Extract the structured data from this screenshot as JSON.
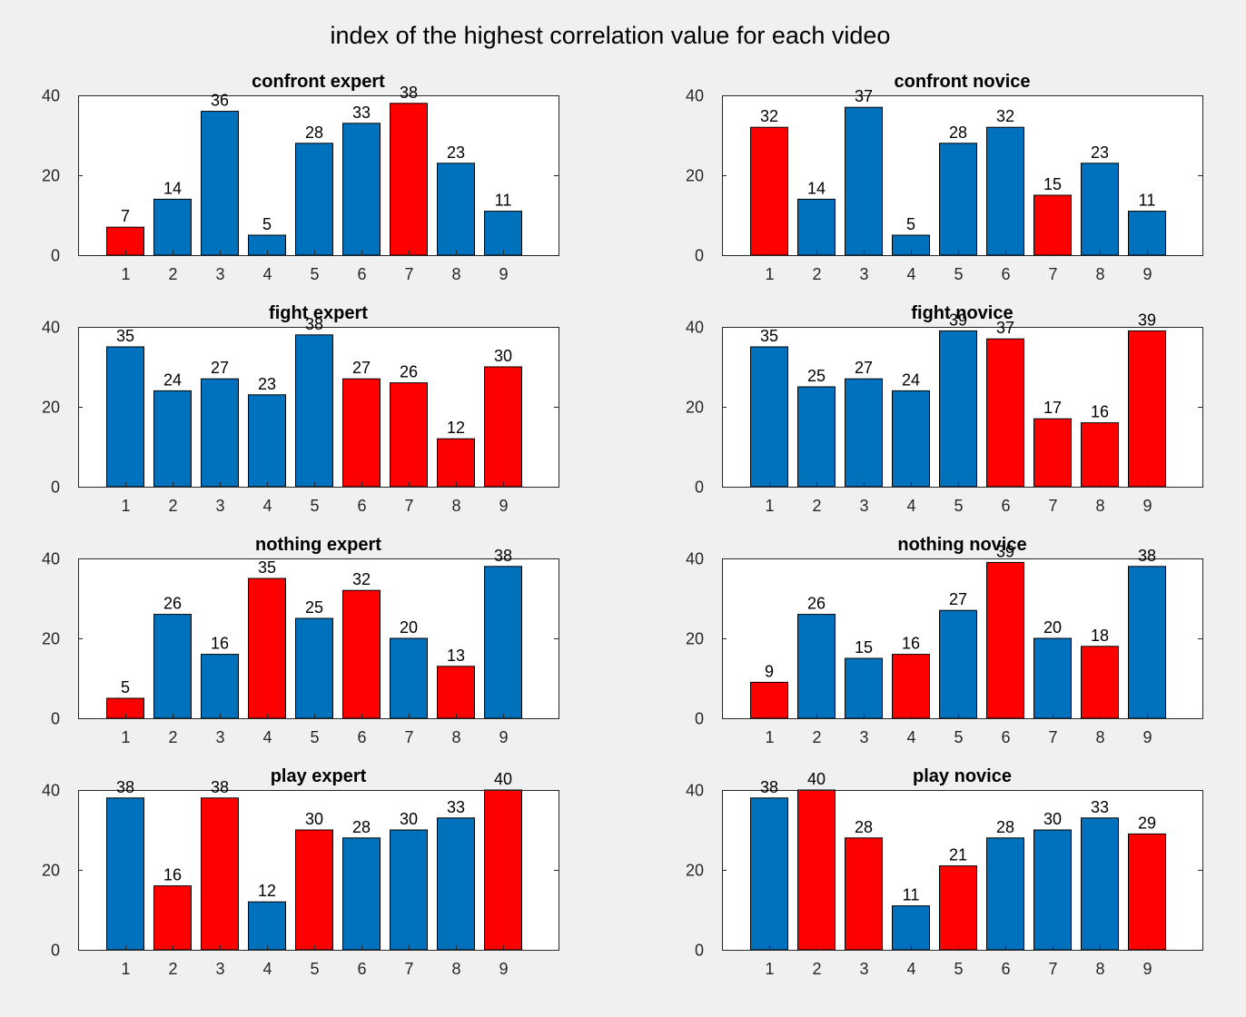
{
  "title": "index of the highest correlation value for each video",
  "colors": {
    "blue": "#0072bd",
    "red": "#ff0000"
  },
  "chart_data": [
    {
      "type": "bar",
      "title": "confront expert",
      "categories": [
        "1",
        "2",
        "3",
        "4",
        "5",
        "6",
        "7",
        "8",
        "9"
      ],
      "values": [
        7,
        14,
        36,
        5,
        28,
        33,
        38,
        23,
        11
      ],
      "colors": [
        "red",
        "blue",
        "blue",
        "blue",
        "blue",
        "blue",
        "red",
        "blue",
        "blue"
      ],
      "ylim": [
        0,
        40
      ],
      "yticks": [
        0,
        20,
        40
      ],
      "grid": false
    },
    {
      "type": "bar",
      "title": "confront novice",
      "categories": [
        "1",
        "2",
        "3",
        "4",
        "5",
        "6",
        "7",
        "8",
        "9"
      ],
      "values": [
        32,
        14,
        37,
        5,
        28,
        32,
        15,
        23,
        11
      ],
      "colors": [
        "red",
        "blue",
        "blue",
        "blue",
        "blue",
        "blue",
        "red",
        "blue",
        "blue"
      ],
      "ylim": [
        0,
        40
      ],
      "yticks": [
        0,
        20,
        40
      ],
      "grid": false
    },
    {
      "type": "bar",
      "title": "fight expert",
      "categories": [
        "1",
        "2",
        "3",
        "4",
        "5",
        "6",
        "7",
        "8",
        "9"
      ],
      "values": [
        35,
        24,
        27,
        23,
        38,
        27,
        26,
        12,
        30
      ],
      "colors": [
        "blue",
        "blue",
        "blue",
        "blue",
        "blue",
        "red",
        "red",
        "red",
        "red"
      ],
      "ylim": [
        0,
        40
      ],
      "yticks": [
        0,
        20,
        40
      ],
      "grid": false
    },
    {
      "type": "bar",
      "title": "fight novice",
      "categories": [
        "1",
        "2",
        "3",
        "4",
        "5",
        "6",
        "7",
        "8",
        "9"
      ],
      "values": [
        35,
        25,
        27,
        24,
        39,
        37,
        17,
        16,
        39
      ],
      "colors": [
        "blue",
        "blue",
        "blue",
        "blue",
        "blue",
        "red",
        "red",
        "red",
        "red"
      ],
      "ylim": [
        0,
        40
      ],
      "yticks": [
        0,
        20,
        40
      ],
      "grid": false
    },
    {
      "type": "bar",
      "title": "nothing expert",
      "categories": [
        "1",
        "2",
        "3",
        "4",
        "5",
        "6",
        "7",
        "8",
        "9"
      ],
      "values": [
        5,
        26,
        16,
        35,
        25,
        32,
        20,
        13,
        38
      ],
      "colors": [
        "red",
        "blue",
        "blue",
        "red",
        "blue",
        "red",
        "blue",
        "red",
        "blue"
      ],
      "ylim": [
        0,
        40
      ],
      "yticks": [
        0,
        20,
        40
      ],
      "grid": false
    },
    {
      "type": "bar",
      "title": "nothing novice",
      "categories": [
        "1",
        "2",
        "3",
        "4",
        "5",
        "6",
        "7",
        "8",
        "9"
      ],
      "values": [
        9,
        26,
        15,
        16,
        27,
        39,
        20,
        18,
        38
      ],
      "colors": [
        "red",
        "blue",
        "blue",
        "red",
        "blue",
        "red",
        "blue",
        "red",
        "blue"
      ],
      "ylim": [
        0,
        40
      ],
      "yticks": [
        0,
        20,
        40
      ],
      "grid": false
    },
    {
      "type": "bar",
      "title": "play expert",
      "categories": [
        "1",
        "2",
        "3",
        "4",
        "5",
        "6",
        "7",
        "8",
        "9"
      ],
      "values": [
        38,
        16,
        38,
        12,
        30,
        28,
        30,
        33,
        40
      ],
      "colors": [
        "blue",
        "red",
        "red",
        "blue",
        "red",
        "blue",
        "blue",
        "blue",
        "red"
      ],
      "ylim": [
        0,
        40
      ],
      "yticks": [
        0,
        20,
        40
      ],
      "grid": false
    },
    {
      "type": "bar",
      "title": "play novice",
      "categories": [
        "1",
        "2",
        "3",
        "4",
        "5",
        "6",
        "7",
        "8",
        "9"
      ],
      "values": [
        38,
        40,
        28,
        11,
        21,
        28,
        30,
        33,
        29
      ],
      "colors": [
        "blue",
        "red",
        "red",
        "blue",
        "red",
        "blue",
        "blue",
        "blue",
        "red"
      ],
      "ylim": [
        0,
        40
      ],
      "yticks": [
        0,
        20,
        40
      ],
      "grid": false
    }
  ]
}
